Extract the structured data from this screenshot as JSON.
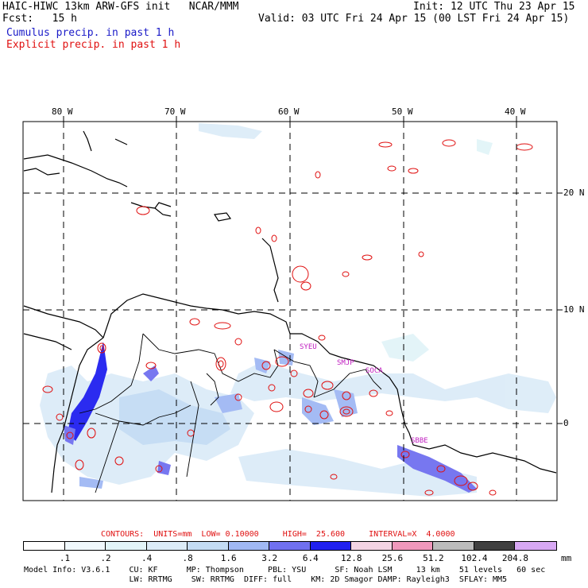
{
  "header": {
    "title_left": "HAIC-HIWC 13km ARW-GFS init   NCAR/MMM",
    "fcst": "Fcst:   15 h",
    "init": "Init: 12 UTC Thu 23 Apr 15",
    "valid": "Valid: 03 UTC Fri 24 Apr 15 (00 LST Fri 24 Apr 15)",
    "cumulus": "Cumulus precip. in past 1 h",
    "explicit": "Explicit precip. in past 1 h"
  },
  "map": {
    "lon_labels": [
      "80 W",
      "70 W",
      "60 W",
      "50 W",
      "40 W"
    ],
    "lat_labels": [
      "20 N",
      "10 N",
      "0"
    ],
    "stations": [
      "SYEU",
      "SMJP",
      "SOCA",
      "SBBE"
    ]
  },
  "contours": {
    "label": "CONTOURS:  UNITS=mm  LOW= 0.10000     HIGH=  25.600     INTERVAL=X  4.0000"
  },
  "colorbar": {
    "levels": [
      ".1",
      ".2",
      ".4",
      ".8",
      "1.6",
      "3.2",
      "6.4",
      "12.8",
      "25.6",
      "51.2",
      "102.4",
      "204.8"
    ],
    "unit": "mm",
    "colors": [
      "#ffffff",
      "#f0f8fc",
      "#e2f4f8",
      "#dcecf8",
      "#c4dcf4",
      "#a0b8f4",
      "#7070f0",
      "#2020f0",
      "#f4d4e4",
      "#f098bc",
      "#bcbcbc",
      "#404040",
      "#d8a8f4"
    ]
  },
  "model_info": {
    "line1": "Model Info: V3.6.1    CU: KF      MP: Thompson     PBL: YSU      SF: Noah LSM     13 km    51 levels   60 sec",
    "line2": "                      LW: RRTMG    SW: RRTMG  DIFF: full    KM: 2D Smagor DAMP: Rayleigh3  SFLAY: MM5"
  }
}
